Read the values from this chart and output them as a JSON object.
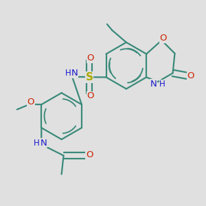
{
  "background_color": "#e0e0e0",
  "bond_color": "#3a8a7a",
  "bond_width": 1.6,
  "figsize": [
    3.0,
    3.0
  ],
  "dpi": 100,
  "colors": {
    "O": "#cc2200",
    "N": "#1a1acc",
    "S": "#aaaa00",
    "C": "#3a8a7a",
    "H": "#1a1acc"
  }
}
